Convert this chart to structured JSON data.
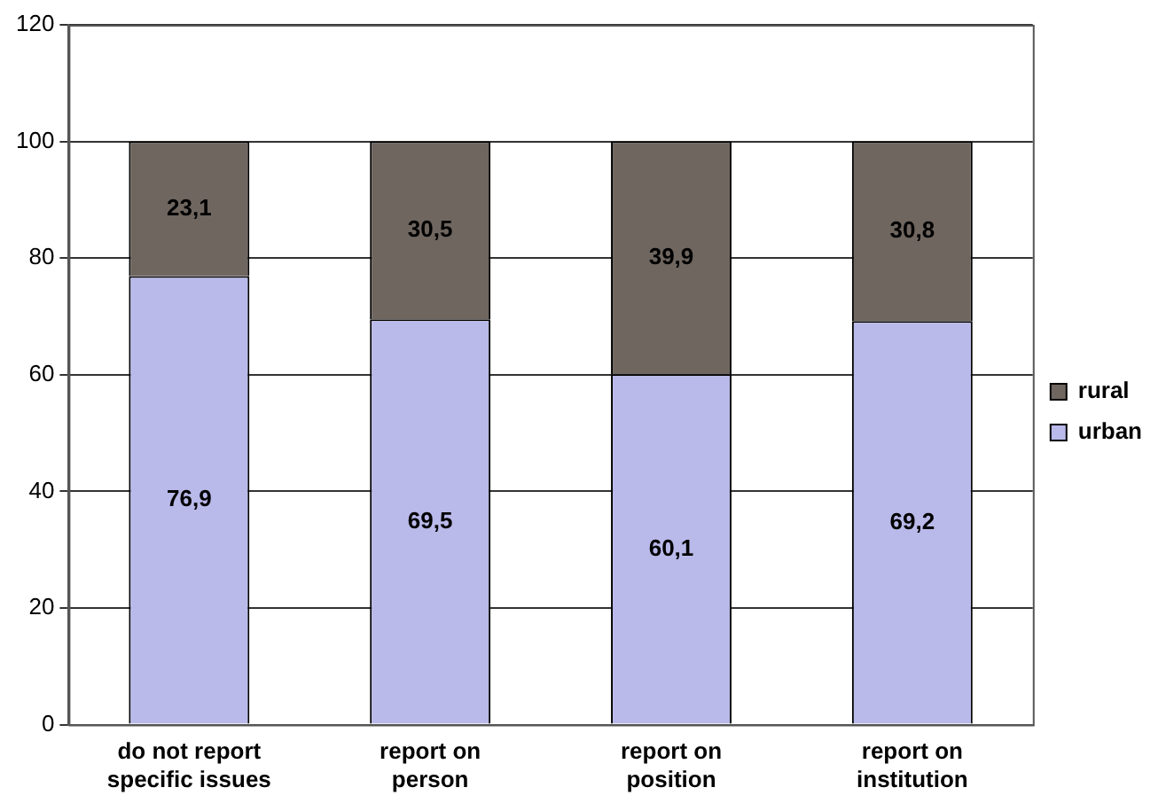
{
  "chart_data": {
    "type": "bar",
    "stacked": true,
    "categories": [
      "do not report specific issues",
      "report on person",
      "report on position",
      "report on institution"
    ],
    "series": [
      {
        "name": "urban",
        "color": "#b9b9ea",
        "values": [
          76.9,
          69.5,
          60.1,
          69.2
        ],
        "value_labels": [
          "76,9",
          "69,5",
          "60,1",
          "69,2"
        ]
      },
      {
        "name": "rural",
        "color": "#6f6660",
        "values": [
          23.1,
          30.5,
          39.9,
          30.8
        ],
        "value_labels": [
          "23,1",
          "30,5",
          "39,9",
          "30,8"
        ]
      }
    ],
    "ylim": [
      0,
      120
    ],
    "yticks": [
      0,
      20,
      40,
      60,
      80,
      100,
      120
    ],
    "grid": "y",
    "legend": "right"
  }
}
